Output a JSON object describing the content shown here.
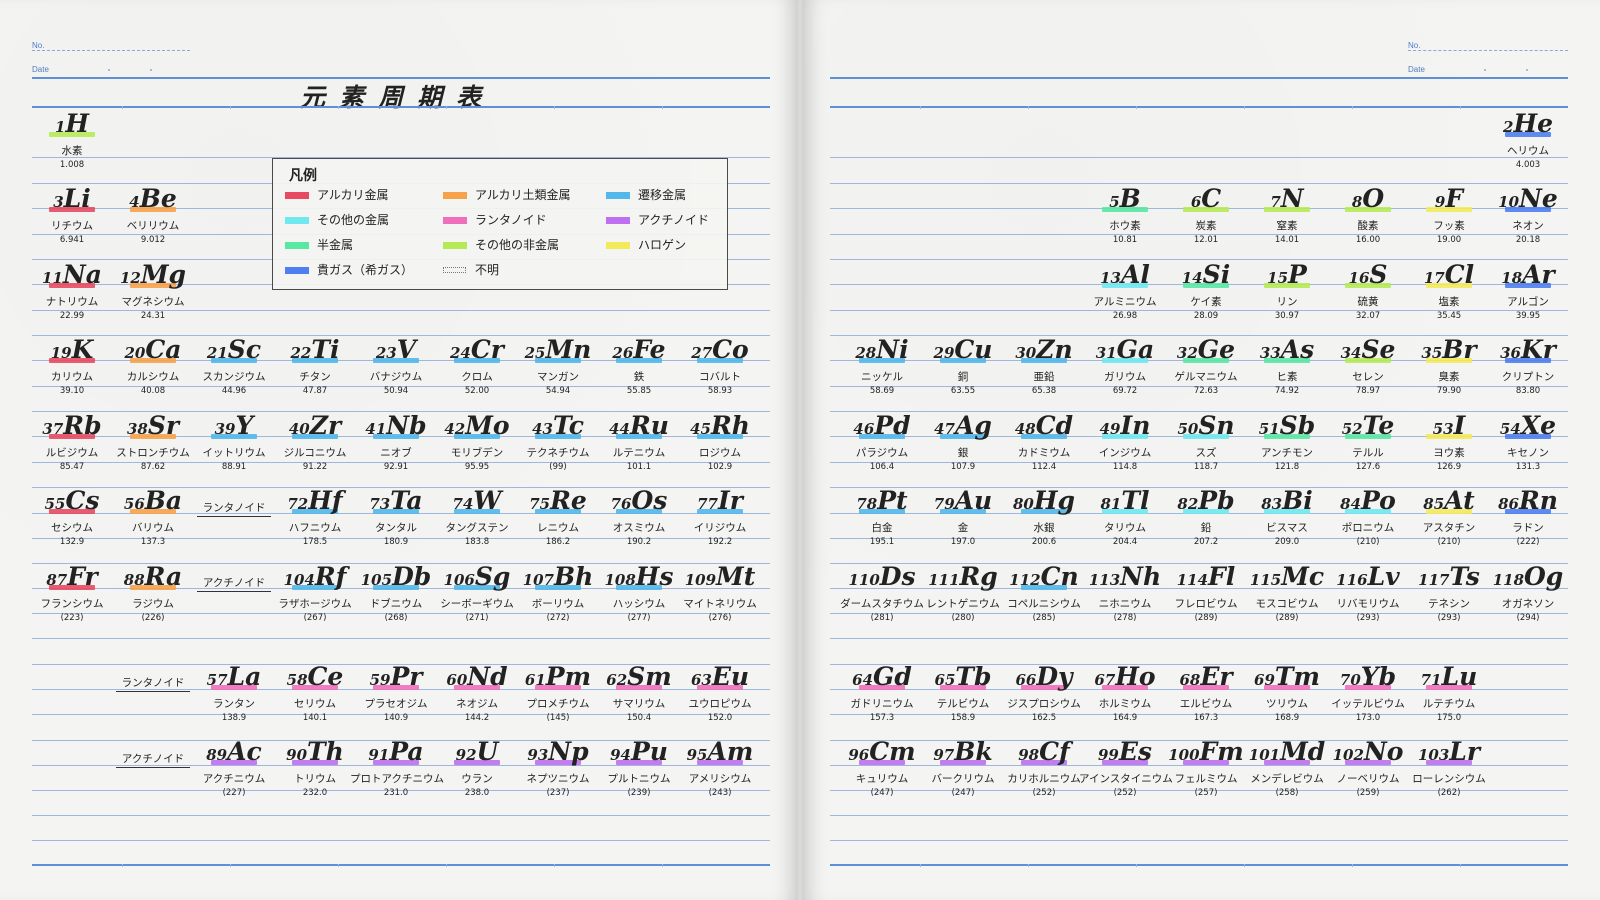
{
  "header": {
    "no_label": "No.",
    "date_label": "Date"
  },
  "title": "元素周期表",
  "legend": {
    "title": "凡例",
    "items": [
      {
        "label": "アルカリ金属",
        "color": "#e84a5f"
      },
      {
        "label": "アルカリ土類金属",
        "color": "#f7a24a"
      },
      {
        "label": "遷移金属",
        "color": "#52b7ea"
      },
      {
        "label": "その他の金属",
        "color": "#6fe8ef"
      },
      {
        "label": "ランタノイド",
        "color": "#ef6fbd"
      },
      {
        "label": "アクチノイド",
        "color": "#c06ff0"
      },
      {
        "label": "半金属",
        "color": "#59e8a3"
      },
      {
        "label": "その他の非金属",
        "color": "#b6ea55"
      },
      {
        "label": "ハロゲン",
        "color": "#f3ea5a"
      },
      {
        "label": "貴ガス（希ガス）",
        "color": "#4f7ef0"
      },
      {
        "label": "不明",
        "color": ""
      }
    ]
  },
  "labels": {
    "lanthanoid": "ランタノイド",
    "actinoid": "アクチノイド"
  },
  "elements": [
    {
      "n": "1",
      "s": "H",
      "ja": "水素",
      "w": "1.008",
      "c": "#b6ea55"
    },
    {
      "n": "2",
      "s": "He",
      "ja": "ヘリウム",
      "w": "4.003",
      "c": "#4f7ef0"
    },
    {
      "n": "3",
      "s": "Li",
      "ja": "リチウム",
      "w": "6.941",
      "c": "#e84a5f"
    },
    {
      "n": "4",
      "s": "Be",
      "ja": "ベリリウム",
      "w": "9.012",
      "c": "#f7a24a"
    },
    {
      "n": "5",
      "s": "B",
      "ja": "ホウ素",
      "w": "10.81",
      "c": "#59e8a3"
    },
    {
      "n": "6",
      "s": "C",
      "ja": "炭素",
      "w": "12.01",
      "c": "#b6ea55"
    },
    {
      "n": "7",
      "s": "N",
      "ja": "窒素",
      "w": "14.01",
      "c": "#b6ea55"
    },
    {
      "n": "8",
      "s": "O",
      "ja": "酸素",
      "w": "16.00",
      "c": "#b6ea55"
    },
    {
      "n": "9",
      "s": "F",
      "ja": "フッ素",
      "w": "19.00",
      "c": "#f3ea5a"
    },
    {
      "n": "10",
      "s": "Ne",
      "ja": "ネオン",
      "w": "20.18",
      "c": "#4f7ef0"
    },
    {
      "n": "11",
      "s": "Na",
      "ja": "ナトリウム",
      "w": "22.99",
      "c": "#e84a5f"
    },
    {
      "n": "12",
      "s": "Mg",
      "ja": "マグネシウム",
      "w": "24.31",
      "c": "#f7a24a"
    },
    {
      "n": "13",
      "s": "Al",
      "ja": "アルミニウム",
      "w": "26.98",
      "c": "#6fe8ef"
    },
    {
      "n": "14",
      "s": "Si",
      "ja": "ケイ素",
      "w": "28.09",
      "c": "#59e8a3"
    },
    {
      "n": "15",
      "s": "P",
      "ja": "リン",
      "w": "30.97",
      "c": "#b6ea55"
    },
    {
      "n": "16",
      "s": "S",
      "ja": "硫黄",
      "w": "32.07",
      "c": "#b6ea55"
    },
    {
      "n": "17",
      "s": "Cl",
      "ja": "塩素",
      "w": "35.45",
      "c": "#f3ea5a"
    },
    {
      "n": "18",
      "s": "Ar",
      "ja": "アルゴン",
      "w": "39.95",
      "c": "#4f7ef0"
    },
    {
      "n": "19",
      "s": "K",
      "ja": "カリウム",
      "w": "39.10",
      "c": "#e84a5f"
    },
    {
      "n": "20",
      "s": "Ca",
      "ja": "カルシウム",
      "w": "40.08",
      "c": "#f7a24a"
    },
    {
      "n": "21",
      "s": "Sc",
      "ja": "スカンジウム",
      "w": "44.96",
      "c": "#52b7ea"
    },
    {
      "n": "22",
      "s": "Ti",
      "ja": "チタン",
      "w": "47.87",
      "c": "#52b7ea"
    },
    {
      "n": "23",
      "s": "V",
      "ja": "バナジウム",
      "w": "50.94",
      "c": "#52b7ea"
    },
    {
      "n": "24",
      "s": "Cr",
      "ja": "クロム",
      "w": "52.00",
      "c": "#52b7ea"
    },
    {
      "n": "25",
      "s": "Mn",
      "ja": "マンガン",
      "w": "54.94",
      "c": "#52b7ea"
    },
    {
      "n": "26",
      "s": "Fe",
      "ja": "鉄",
      "w": "55.85",
      "c": "#52b7ea"
    },
    {
      "n": "27",
      "s": "Co",
      "ja": "コバルト",
      "w": "58.93",
      "c": "#52b7ea"
    },
    {
      "n": "28",
      "s": "Ni",
      "ja": "ニッケル",
      "w": "58.69",
      "c": "#52b7ea"
    },
    {
      "n": "29",
      "s": "Cu",
      "ja": "銅",
      "w": "63.55",
      "c": "#52b7ea"
    },
    {
      "n": "30",
      "s": "Zn",
      "ja": "亜鉛",
      "w": "65.38",
      "c": "#52b7ea"
    },
    {
      "n": "31",
      "s": "Ga",
      "ja": "ガリウム",
      "w": "69.72",
      "c": "#6fe8ef"
    },
    {
      "n": "32",
      "s": "Ge",
      "ja": "ゲルマニウム",
      "w": "72.63",
      "c": "#59e8a3"
    },
    {
      "n": "33",
      "s": "As",
      "ja": "ヒ素",
      "w": "74.92",
      "c": "#59e8a3"
    },
    {
      "n": "34",
      "s": "Se",
      "ja": "セレン",
      "w": "78.97",
      "c": "#b6ea55"
    },
    {
      "n": "35",
      "s": "Br",
      "ja": "臭素",
      "w": "79.90",
      "c": "#f3ea5a"
    },
    {
      "n": "36",
      "s": "Kr",
      "ja": "クリプトン",
      "w": "83.80",
      "c": "#4f7ef0"
    },
    {
      "n": "37",
      "s": "Rb",
      "ja": "ルビジウム",
      "w": "85.47",
      "c": "#e84a5f"
    },
    {
      "n": "38",
      "s": "Sr",
      "ja": "ストロンチウム",
      "w": "87.62",
      "c": "#f7a24a"
    },
    {
      "n": "39",
      "s": "Y",
      "ja": "イットリウム",
      "w": "88.91",
      "c": "#52b7ea"
    },
    {
      "n": "40",
      "s": "Zr",
      "ja": "ジルコニウム",
      "w": "91.22",
      "c": "#52b7ea"
    },
    {
      "n": "41",
      "s": "Nb",
      "ja": "ニオブ",
      "w": "92.91",
      "c": "#52b7ea"
    },
    {
      "n": "42",
      "s": "Mo",
      "ja": "モリブデン",
      "w": "95.95",
      "c": "#52b7ea"
    },
    {
      "n": "43",
      "s": "Tc",
      "ja": "テクネチウム",
      "w": "(99)",
      "c": "#52b7ea"
    },
    {
      "n": "44",
      "s": "Ru",
      "ja": "ルテニウム",
      "w": "101.1",
      "c": "#52b7ea"
    },
    {
      "n": "45",
      "s": "Rh",
      "ja": "ロジウム",
      "w": "102.9",
      "c": "#52b7ea"
    },
    {
      "n": "46",
      "s": "Pd",
      "ja": "パラジウム",
      "w": "106.4",
      "c": "#52b7ea"
    },
    {
      "n": "47",
      "s": "Ag",
      "ja": "銀",
      "w": "107.9",
      "c": "#52b7ea"
    },
    {
      "n": "48",
      "s": "Cd",
      "ja": "カドミウム",
      "w": "112.4",
      "c": "#52b7ea"
    },
    {
      "n": "49",
      "s": "In",
      "ja": "インジウム",
      "w": "114.8",
      "c": "#6fe8ef"
    },
    {
      "n": "50",
      "s": "Sn",
      "ja": "スズ",
      "w": "118.7",
      "c": "#6fe8ef"
    },
    {
      "n": "51",
      "s": "Sb",
      "ja": "アンチモン",
      "w": "121.8",
      "c": "#59e8a3"
    },
    {
      "n": "52",
      "s": "Te",
      "ja": "テルル",
      "w": "127.6",
      "c": "#59e8a3"
    },
    {
      "n": "53",
      "s": "I",
      "ja": "ヨウ素",
      "w": "126.9",
      "c": "#f3ea5a"
    },
    {
      "n": "54",
      "s": "Xe",
      "ja": "キセノン",
      "w": "131.3",
      "c": "#4f7ef0"
    },
    {
      "n": "55",
      "s": "Cs",
      "ja": "セシウム",
      "w": "132.9",
      "c": "#e84a5f"
    },
    {
      "n": "56",
      "s": "Ba",
      "ja": "バリウム",
      "w": "137.3",
      "c": "#f7a24a"
    },
    {
      "n": "72",
      "s": "Hf",
      "ja": "ハフニウム",
      "w": "178.5",
      "c": "#52b7ea"
    },
    {
      "n": "73",
      "s": "Ta",
      "ja": "タンタル",
      "w": "180.9",
      "c": "#52b7ea"
    },
    {
      "n": "74",
      "s": "W",
      "ja": "タングステン",
      "w": "183.8",
      "c": "#52b7ea"
    },
    {
      "n": "75",
      "s": "Re",
      "ja": "レニウム",
      "w": "186.2",
      "c": "#52b7ea"
    },
    {
      "n": "76",
      "s": "Os",
      "ja": "オスミウム",
      "w": "190.2",
      "c": "#52b7ea"
    },
    {
      "n": "77",
      "s": "Ir",
      "ja": "イリジウム",
      "w": "192.2",
      "c": "#52b7ea"
    },
    {
      "n": "78",
      "s": "Pt",
      "ja": "白金",
      "w": "195.1",
      "c": "#52b7ea"
    },
    {
      "n": "79",
      "s": "Au",
      "ja": "金",
      "w": "197.0",
      "c": "#52b7ea"
    },
    {
      "n": "80",
      "s": "Hg",
      "ja": "水銀",
      "w": "200.6",
      "c": "#52b7ea"
    },
    {
      "n": "81",
      "s": "Tl",
      "ja": "タリウム",
      "w": "204.4",
      "c": "#6fe8ef"
    },
    {
      "n": "82",
      "s": "Pb",
      "ja": "鉛",
      "w": "207.2",
      "c": "#6fe8ef"
    },
    {
      "n": "83",
      "s": "Bi",
      "ja": "ビスマス",
      "w": "209.0",
      "c": "#6fe8ef"
    },
    {
      "n": "84",
      "s": "Po",
      "ja": "ポロニウム",
      "w": "(210)",
      "c": "#6fe8ef"
    },
    {
      "n": "85",
      "s": "At",
      "ja": "アスタチン",
      "w": "(210)",
      "c": "#f3ea5a"
    },
    {
      "n": "86",
      "s": "Rn",
      "ja": "ラドン",
      "w": "(222)",
      "c": "#4f7ef0"
    },
    {
      "n": "87",
      "s": "Fr",
      "ja": "フランシウム",
      "w": "(223)",
      "c": "#e84a5f"
    },
    {
      "n": "88",
      "s": "Ra",
      "ja": "ラジウム",
      "w": "(226)",
      "c": "#f7a24a"
    },
    {
      "n": "104",
      "s": "Rf",
      "ja": "ラザホージウム",
      "w": "(267)",
      "c": "#52b7ea"
    },
    {
      "n": "105",
      "s": "Db",
      "ja": "ドブニウム",
      "w": "(268)",
      "c": "#52b7ea"
    },
    {
      "n": "106",
      "s": "Sg",
      "ja": "シーボーギウム",
      "w": "(271)",
      "c": "#52b7ea"
    },
    {
      "n": "107",
      "s": "Bh",
      "ja": "ボーリウム",
      "w": "(272)",
      "c": "#52b7ea"
    },
    {
      "n": "108",
      "s": "Hs",
      "ja": "ハッシウム",
      "w": "(277)",
      "c": "#52b7ea"
    },
    {
      "n": "109",
      "s": "Mt",
      "ja": "マイトネリウム",
      "w": "(276)",
      "c": ""
    },
    {
      "n": "110",
      "s": "Ds",
      "ja": "ダームスタチウム",
      "w": "(281)",
      "c": ""
    },
    {
      "n": "111",
      "s": "Rg",
      "ja": "レントゲニウム",
      "w": "(280)",
      "c": ""
    },
    {
      "n": "112",
      "s": "Cn",
      "ja": "コペルニシウム",
      "w": "(285)",
      "c": "#52b7ea"
    },
    {
      "n": "113",
      "s": "Nh",
      "ja": "ニホニウム",
      "w": "(278)",
      "c": ""
    },
    {
      "n": "114",
      "s": "Fl",
      "ja": "フレロビウム",
      "w": "(289)",
      "c": ""
    },
    {
      "n": "115",
      "s": "Mc",
      "ja": "モスコビウム",
      "w": "(289)",
      "c": ""
    },
    {
      "n": "116",
      "s": "Lv",
      "ja": "リバモリウム",
      "w": "(293)",
      "c": ""
    },
    {
      "n": "117",
      "s": "Ts",
      "ja": "テネシン",
      "w": "(293)",
      "c": ""
    },
    {
      "n": "118",
      "s": "Og",
      "ja": "オガネソン",
      "w": "(294)",
      "c": ""
    },
    {
      "n": "57",
      "s": "La",
      "ja": "ランタン",
      "w": "138.9",
      "c": "#ef6fbd"
    },
    {
      "n": "58",
      "s": "Ce",
      "ja": "セリウム",
      "w": "140.1",
      "c": "#ef6fbd"
    },
    {
      "n": "59",
      "s": "Pr",
      "ja": "プラセオジム",
      "w": "140.9",
      "c": "#ef6fbd"
    },
    {
      "n": "60",
      "s": "Nd",
      "ja": "ネオジム",
      "w": "144.2",
      "c": "#ef6fbd"
    },
    {
      "n": "61",
      "s": "Pm",
      "ja": "プロメチウム",
      "w": "(145)",
      "c": "#ef6fbd"
    },
    {
      "n": "62",
      "s": "Sm",
      "ja": "サマリウム",
      "w": "150.4",
      "c": "#ef6fbd"
    },
    {
      "n": "63",
      "s": "Eu",
      "ja": "ユウロピウム",
      "w": "152.0",
      "c": "#ef6fbd"
    },
    {
      "n": "64",
      "s": "Gd",
      "ja": "ガドリニウム",
      "w": "157.3",
      "c": "#ef6fbd"
    },
    {
      "n": "65",
      "s": "Tb",
      "ja": "テルビウム",
      "w": "158.9",
      "c": "#ef6fbd"
    },
    {
      "n": "66",
      "s": "Dy",
      "ja": "ジスプロシウム",
      "w": "162.5",
      "c": "#ef6fbd"
    },
    {
      "n": "67",
      "s": "Ho",
      "ja": "ホルミウム",
      "w": "164.9",
      "c": "#ef6fbd"
    },
    {
      "n": "68",
      "s": "Er",
      "ja": "エルビウム",
      "w": "167.3",
      "c": "#ef6fbd"
    },
    {
      "n": "69",
      "s": "Tm",
      "ja": "ツリウム",
      "w": "168.9",
      "c": "#ef6fbd"
    },
    {
      "n": "70",
      "s": "Yb",
      "ja": "イッテルビウム",
      "w": "173.0",
      "c": "#ef6fbd"
    },
    {
      "n": "71",
      "s": "Lu",
      "ja": "ルテチウム",
      "w": "175.0",
      "c": "#ef6fbd"
    },
    {
      "n": "89",
      "s": "Ac",
      "ja": "アクチニウム",
      "w": "(227)",
      "c": "#c06ff0"
    },
    {
      "n": "90",
      "s": "Th",
      "ja": "トリウム",
      "w": "232.0",
      "c": "#c06ff0"
    },
    {
      "n": "91",
      "s": "Pa",
      "ja": "プロトアクチニウム",
      "w": "231.0",
      "c": "#c06ff0"
    },
    {
      "n": "92",
      "s": "U",
      "ja": "ウラン",
      "w": "238.0",
      "c": "#c06ff0"
    },
    {
      "n": "93",
      "s": "Np",
      "ja": "ネプツニウム",
      "w": "(237)",
      "c": "#c06ff0"
    },
    {
      "n": "94",
      "s": "Pu",
      "ja": "プルトニウム",
      "w": "(239)",
      "c": "#c06ff0"
    },
    {
      "n": "95",
      "s": "Am",
      "ja": "アメリシウム",
      "w": "(243)",
      "c": "#c06ff0"
    },
    {
      "n": "96",
      "s": "Cm",
      "ja": "キュリウム",
      "w": "(247)",
      "c": "#c06ff0"
    },
    {
      "n": "97",
      "s": "Bk",
      "ja": "バークリウム",
      "w": "(247)",
      "c": "#c06ff0"
    },
    {
      "n": "98",
      "s": "Cf",
      "ja": "カリホルニウム",
      "w": "(252)",
      "c": "#c06ff0"
    },
    {
      "n": "99",
      "s": "Es",
      "ja": "アインスタイニウム",
      "w": "(252)",
      "c": "#c06ff0"
    },
    {
      "n": "100",
      "s": "Fm",
      "ja": "フェルミウム",
      "w": "(257)",
      "c": "#c06ff0"
    },
    {
      "n": "101",
      "s": "Md",
      "ja": "メンデレビウム",
      "w": "(258)",
      "c": "#c06ff0"
    },
    {
      "n": "102",
      "s": "No",
      "ja": "ノーベリウム",
      "w": "(259)",
      "c": "#c06ff0"
    },
    {
      "n": "103",
      "s": "Lr",
      "ja": "ローレンシウム",
      "w": "(262)",
      "c": "#c06ff0"
    }
  ]
}
